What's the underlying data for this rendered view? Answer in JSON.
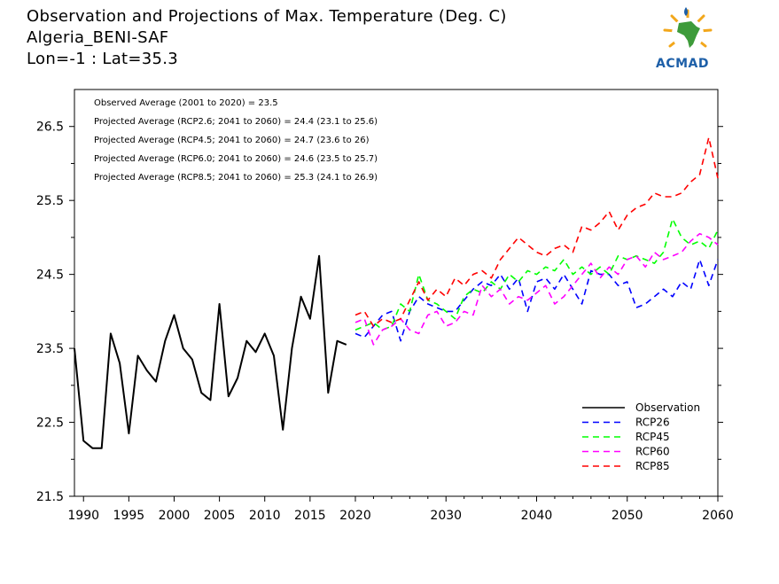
{
  "header": {
    "title": "Observation and Projections of Max. Temperature (Deg. C)",
    "station": "Algeria_BENI-SAF",
    "coords": "Lon=-1 : Lat=35.3"
  },
  "logo": {
    "text": "ACMAD",
    "icon": "africa-map-logo-icon"
  },
  "stats": [
    "Observed Average (2001 to 2020) = 23.5",
    "Projected Average (RCP2.6; 2041 to 2060) = 24.4 (23.1 to 25.6)",
    "Projected Average (RCP4.5; 2041 to 2060) = 24.7 (23.6 to 26)",
    "Projected Average (RCP6.0; 2041 to 2060) = 24.6 (23.5 to 25.7)",
    "Projected Average (RCP8.5; 2041 to 2060) = 25.3 (24.1 to 26.9)"
  ],
  "chart_data": {
    "type": "line",
    "xlim": [
      1989,
      2060
    ],
    "ylim": [
      21.5,
      27.0
    ],
    "legend_position": "bottom-right",
    "x_ticks_minor": [
      1990,
      1995,
      2000,
      2005,
      2010,
      2015,
      2020
    ],
    "x_ticks_major": [
      2030,
      2040,
      2050,
      2060
    ],
    "y_ticks": [
      21.5,
      22.5,
      23.5,
      24.5,
      25.5,
      26.5
    ],
    "series": [
      {
        "name": "Observation",
        "color": "#000000",
        "dashed": false,
        "x": [
          1989,
          1990,
          1991,
          1992,
          1993,
          1994,
          1995,
          1996,
          1997,
          1998,
          1999,
          2000,
          2001,
          2002,
          2003,
          2004,
          2005,
          2006,
          2007,
          2008,
          2009,
          2010,
          2011,
          2012,
          2013,
          2014,
          2015,
          2016,
          2017,
          2018,
          2019
        ],
        "y": [
          23.5,
          22.25,
          22.15,
          22.15,
          23.7,
          23.3,
          22.35,
          23.4,
          23.2,
          23.05,
          23.6,
          23.95,
          23.5,
          23.35,
          22.9,
          22.8,
          24.1,
          22.85,
          23.1,
          23.6,
          23.45,
          23.7,
          23.4,
          22.4,
          23.5,
          24.2,
          23.9,
          24.75,
          22.9,
          23.6,
          23.55
        ]
      },
      {
        "name": "RCP26",
        "color": "#0000ff",
        "dashed": true,
        "x": [
          2020,
          2021,
          2022,
          2023,
          2024,
          2025,
          2026,
          2027,
          2028,
          2029,
          2030,
          2031,
          2032,
          2033,
          2034,
          2035,
          2036,
          2037,
          2038,
          2039,
          2040,
          2041,
          2042,
          2043,
          2044,
          2045,
          2046,
          2047,
          2048,
          2049,
          2050,
          2051,
          2052,
          2053,
          2054,
          2055,
          2056,
          2057,
          2058,
          2059,
          2060
        ],
        "y": [
          23.7,
          23.65,
          23.8,
          23.95,
          24.0,
          23.6,
          24.0,
          24.2,
          24.1,
          24.05,
          24.0,
          24.0,
          24.15,
          24.3,
          24.4,
          24.35,
          24.5,
          24.3,
          24.45,
          24.0,
          24.4,
          24.45,
          24.3,
          24.5,
          24.3,
          24.1,
          24.55,
          24.5,
          24.5,
          24.35,
          24.4,
          24.05,
          24.1,
          24.2,
          24.3,
          24.2,
          24.4,
          24.3,
          24.7,
          24.35,
          24.7
        ]
      },
      {
        "name": "RCP45",
        "color": "#00ff00",
        "dashed": true,
        "x": [
          2020,
          2021,
          2022,
          2023,
          2024,
          2025,
          2026,
          2027,
          2028,
          2029,
          2030,
          2031,
          2032,
          2033,
          2034,
          2035,
          2036,
          2037,
          2038,
          2039,
          2040,
          2041,
          2042,
          2043,
          2044,
          2045,
          2046,
          2047,
          2048,
          2049,
          2050,
          2051,
          2052,
          2053,
          2054,
          2055,
          2056,
          2057,
          2058,
          2059,
          2060
        ],
        "y": [
          23.75,
          23.8,
          23.85,
          23.75,
          23.8,
          24.1,
          24.0,
          24.5,
          24.15,
          24.1,
          24.0,
          23.9,
          24.2,
          24.3,
          24.25,
          24.4,
          24.3,
          24.5,
          24.4,
          24.55,
          24.5,
          24.6,
          24.55,
          24.7,
          24.5,
          24.6,
          24.5,
          24.6,
          24.5,
          24.75,
          24.7,
          24.75,
          24.7,
          24.65,
          24.8,
          25.25,
          25.0,
          24.9,
          24.95,
          24.85,
          25.1
        ]
      },
      {
        "name": "RCP60",
        "color": "#ff00ff",
        "dashed": true,
        "x": [
          2020,
          2021,
          2022,
          2023,
          2024,
          2025,
          2026,
          2027,
          2028,
          2029,
          2030,
          2031,
          2032,
          2033,
          2034,
          2035,
          2036,
          2037,
          2038,
          2039,
          2040,
          2041,
          2042,
          2043,
          2044,
          2045,
          2046,
          2047,
          2048,
          2049,
          2050,
          2051,
          2052,
          2053,
          2054,
          2055,
          2056,
          2057,
          2058,
          2059,
          2060
        ],
        "y": [
          23.85,
          23.9,
          23.55,
          23.75,
          23.8,
          23.9,
          23.75,
          23.7,
          23.95,
          24.0,
          23.8,
          23.85,
          24.0,
          23.95,
          24.35,
          24.2,
          24.3,
          24.1,
          24.2,
          24.15,
          24.25,
          24.35,
          24.1,
          24.2,
          24.35,
          24.5,
          24.65,
          24.45,
          24.6,
          24.5,
          24.7,
          24.75,
          24.6,
          24.8,
          24.7,
          24.75,
          24.8,
          24.95,
          25.05,
          25.0,
          24.9
        ]
      },
      {
        "name": "RCP85",
        "color": "#ff0000",
        "dashed": true,
        "x": [
          2020,
          2021,
          2022,
          2023,
          2024,
          2025,
          2026,
          2027,
          2028,
          2029,
          2030,
          2031,
          2032,
          2033,
          2034,
          2035,
          2036,
          2037,
          2038,
          2039,
          2040,
          2041,
          2042,
          2043,
          2044,
          2045,
          2046,
          2047,
          2048,
          2049,
          2050,
          2051,
          2052,
          2053,
          2054,
          2055,
          2056,
          2057,
          2058,
          2059,
          2060
        ],
        "y": [
          23.95,
          24.0,
          23.8,
          23.9,
          23.85,
          23.9,
          24.15,
          24.4,
          24.15,
          24.3,
          24.2,
          24.45,
          24.35,
          24.5,
          24.55,
          24.45,
          24.7,
          24.85,
          25.0,
          24.9,
          24.8,
          24.75,
          24.85,
          24.9,
          24.8,
          25.15,
          25.1,
          25.2,
          25.35,
          25.1,
          25.3,
          25.4,
          25.45,
          25.6,
          25.55,
          25.55,
          25.6,
          25.75,
          25.85,
          26.35,
          25.8
        ]
      }
    ]
  }
}
